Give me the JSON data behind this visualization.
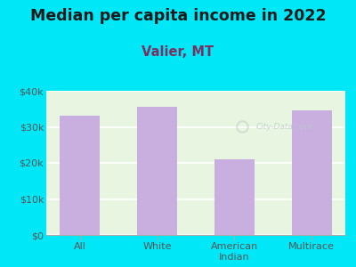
{
  "title": "Median per capita income in 2022",
  "subtitle": "Valier, MT",
  "categories": [
    "All",
    "White",
    "American\nIndian",
    "Multirace"
  ],
  "values": [
    33000,
    35500,
    21000,
    34500
  ],
  "bar_color": "#c9aee0",
  "ylim": [
    0,
    40000
  ],
  "yticks": [
    0,
    10000,
    20000,
    30000,
    40000
  ],
  "ytick_labels": [
    "$0",
    "$10k",
    "$20k",
    "$30k",
    "$40k"
  ],
  "background_outer": "#00e8f8",
  "background_inner": "#e8f5e0",
  "title_color": "#1a1a1a",
  "subtitle_color": "#7a3060",
  "tick_color": "#555555",
  "grid_color": "#ffffff",
  "watermark_text": "City-Data.com",
  "watermark_color": "#b8ccc8",
  "title_fontsize": 12.5,
  "subtitle_fontsize": 10.5,
  "tick_fontsize": 8.0
}
